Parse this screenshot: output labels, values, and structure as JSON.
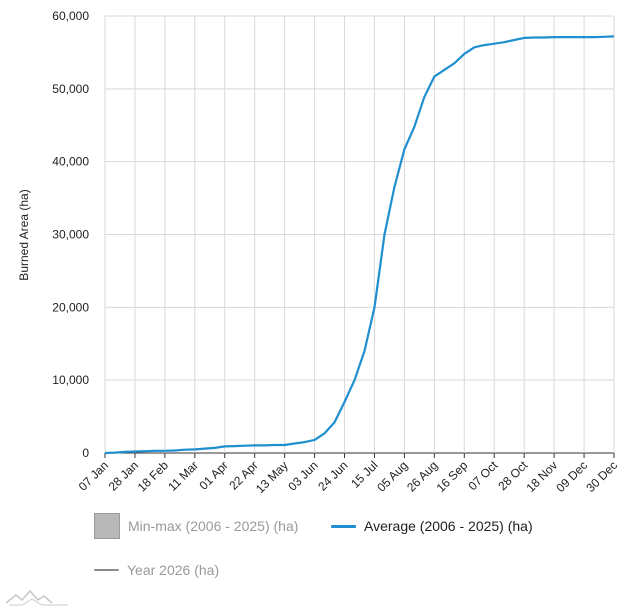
{
  "colors": {
    "average": "#1f8fd0",
    "year": "#8c8c8c",
    "minmax_fill": "#b8b8b8",
    "grid": "#d9d9d9",
    "axis": "#333333"
  },
  "legend": {
    "minmax_label": "Min-max (2006 - 2025) (ha)",
    "average_label": "Average (2006 - 2025) (ha)",
    "year_label": "Year 2026 (ha)"
  },
  "logo": {
    "icon": "mountains-logo-icon"
  },
  "chart_data": {
    "type": "line",
    "ylabel": "Burned Area (ha)",
    "xlabel": "",
    "ylim": [
      0,
      60000
    ],
    "y_ticks": [
      0,
      10000,
      20000,
      30000,
      40000,
      50000,
      60000
    ],
    "y_tick_labels": [
      "0",
      "10,000",
      "20,000",
      "30,000",
      "40,000",
      "50,000",
      "60,000"
    ],
    "x_tick_labels": [
      "07 Jan",
      "28 Jan",
      "18 Feb",
      "11 Mar",
      "01 Apr",
      "22 Apr",
      "13 May",
      "03 Jun",
      "24 Jun",
      "15 Jul",
      "05 Aug",
      "26 Aug",
      "16 Sep",
      "07 Oct",
      "28 Oct",
      "18 Nov",
      "09 Dec",
      "30 Dec"
    ],
    "grid": true,
    "legend_position": "bottom",
    "series": [
      {
        "name": "Average (2006 - 2025) (ha)",
        "x": [
          "07 Jan",
          "14 Jan",
          "21 Jan",
          "28 Jan",
          "04 Feb",
          "11 Feb",
          "18 Feb",
          "25 Feb",
          "04 Mar",
          "11 Mar",
          "18 Mar",
          "25 Mar",
          "01 Apr",
          "08 Apr",
          "15 Apr",
          "22 Apr",
          "29 Apr",
          "06 May",
          "13 May",
          "20 May",
          "27 May",
          "03 Jun",
          "10 Jun",
          "17 Jun",
          "24 Jun",
          "01 Jul",
          "08 Jul",
          "15 Jul",
          "22 Jul",
          "29 Jul",
          "05 Aug",
          "12 Aug",
          "19 Aug",
          "26 Aug",
          "02 Sep",
          "09 Sep",
          "16 Sep",
          "23 Sep",
          "30 Sep",
          "07 Oct",
          "14 Oct",
          "21 Oct",
          "28 Oct",
          "04 Nov",
          "11 Nov",
          "18 Nov",
          "25 Nov",
          "02 Dec",
          "09 Dec",
          "16 Dec",
          "23 Dec",
          "30 Dec"
        ],
        "values": [
          0,
          50,
          150,
          200,
          250,
          300,
          300,
          350,
          450,
          500,
          600,
          700,
          900,
          950,
          1000,
          1050,
          1050,
          1100,
          1100,
          1300,
          1500,
          1800,
          2700,
          4200,
          7000,
          10000,
          14000,
          20000,
          30000,
          36500,
          41700,
          44800,
          48900,
          51700,
          52600,
          53500,
          54800,
          55700,
          56000,
          56200,
          56400,
          56700,
          57000,
          57050,
          57050,
          57100,
          57100,
          57100,
          57100,
          57100,
          57150,
          57200
        ]
      },
      {
        "name": "Year 2026 (ha)",
        "values": []
      }
    ]
  }
}
